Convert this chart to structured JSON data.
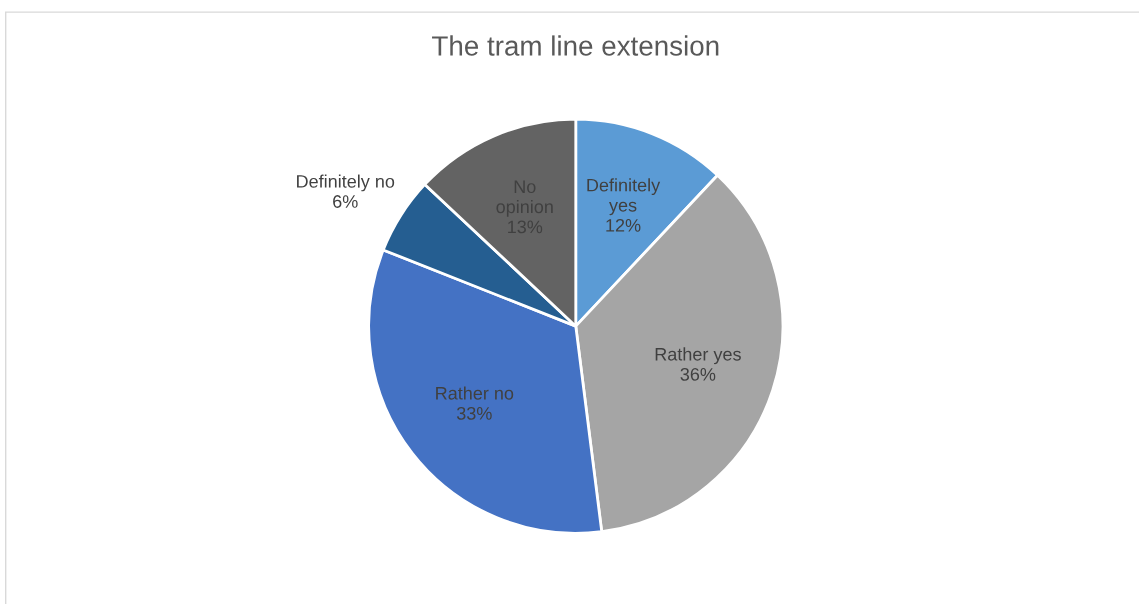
{
  "chart_data": {
    "type": "pie",
    "title": "The tram line extension",
    "categories": [
      "Definitely yes",
      "Rather yes",
      "Rather no",
      "Definitely no",
      "No opinion"
    ],
    "values": [
      12,
      36,
      33,
      6,
      13
    ],
    "colors": [
      "#5b9bd5",
      "#a5a5a5",
      "#4472c4",
      "#255e91",
      "#636363"
    ],
    "value_labels": [
      "12%",
      "36%",
      "33%",
      "6%",
      "13%"
    ],
    "legend": false
  }
}
